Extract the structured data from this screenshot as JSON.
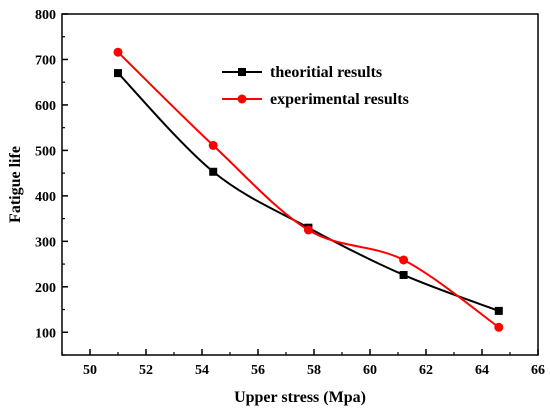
{
  "chart_data": {
    "type": "line",
    "title": "",
    "xlabel": "Upper stress (Mpa)",
    "ylabel": "Fatigue life",
    "xlim": [
      49,
      66
    ],
    "ylim": [
      50,
      800
    ],
    "x_ticks": [
      50,
      52,
      54,
      56,
      58,
      60,
      62,
      64,
      66
    ],
    "y_ticks": [
      100,
      200,
      300,
      400,
      500,
      600,
      700,
      800
    ],
    "grid": false,
    "legend_position": "top-right",
    "series": [
      {
        "name": "theoritial results",
        "color": "#000000",
        "marker": "square",
        "smooth": true,
        "x": [
          51.0,
          54.4,
          57.8,
          61.2,
          64.6
        ],
        "y": [
          670,
          453,
          330,
          226,
          147
        ]
      },
      {
        "name": "experimental results",
        "color": "#ff0000",
        "marker": "circle",
        "smooth": true,
        "x": [
          51.0,
          54.4,
          57.8,
          61.2,
          64.6
        ],
        "y": [
          716,
          511,
          325,
          259,
          111
        ]
      }
    ]
  }
}
